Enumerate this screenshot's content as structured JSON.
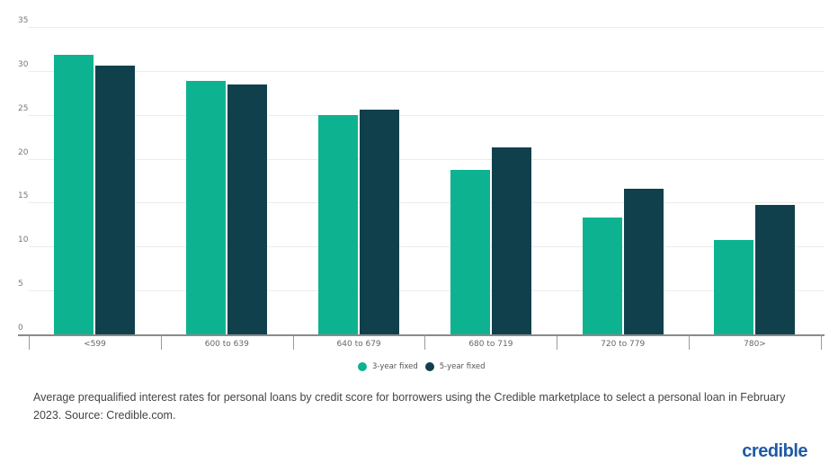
{
  "chart_data": {
    "type": "bar",
    "title": "",
    "xlabel": "",
    "ylabel": "",
    "ylim": [
      0,
      35
    ],
    "yticks": [
      0,
      5,
      10,
      15,
      20,
      25,
      30,
      35
    ],
    "grid": true,
    "legend_position": "bottom",
    "categories": [
      "<599",
      "600 to 639",
      "640 to 679",
      "680 to 719",
      "720 to 779",
      "780>"
    ],
    "series": [
      {
        "name": "3-year fixed",
        "color": "#0db391",
        "values": [
          31.8,
          28.9,
          25.0,
          18.7,
          13.3,
          10.7
        ]
      },
      {
        "name": "5-year fixed",
        "color": "#11404d",
        "values": [
          30.6,
          28.5,
          25.6,
          21.3,
          16.6,
          14.7
        ]
      }
    ]
  },
  "legend": {
    "items": [
      {
        "label": "3-year fixed",
        "color": "#0db391"
      },
      {
        "label": "5-year fixed",
        "color": "#11404d"
      }
    ]
  },
  "caption": "Average prequalified interest rates for personal loans by credit score for borrowers using the Credible marketplace to select a personal loan in February 2023. Source: Credible.com.",
  "logo": {
    "text": "credible",
    "color": "#1f5aa6"
  }
}
